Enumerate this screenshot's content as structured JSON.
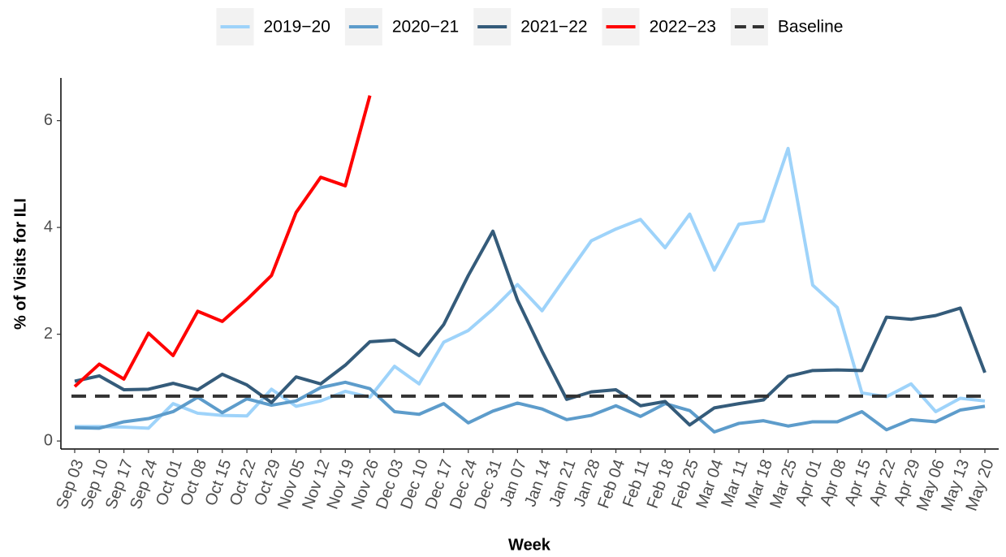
{
  "chart_data": {
    "type": "line",
    "xlabel": "Week",
    "ylabel": "% of Visits for ILI",
    "categories": [
      "Sep 03",
      "Sep 10",
      "Sep 17",
      "Sep 24",
      "Oct 01",
      "Oct 08",
      "Oct 15",
      "Oct 22",
      "Oct 29",
      "Nov 05",
      "Nov 12",
      "Nov 19",
      "Nov 26",
      "Dec 03",
      "Dec 10",
      "Dec 17",
      "Dec 24",
      "Dec 31",
      "Jan 07",
      "Jan 14",
      "Jan 21",
      "Jan 28",
      "Feb 04",
      "Feb 11",
      "Feb 18",
      "Feb 25",
      "Mar 04",
      "Mar 11",
      "Mar 18",
      "Mar 25",
      "Apr 01",
      "Apr 08",
      "Apr 15",
      "Apr 22",
      "Apr 29",
      "May 06",
      "May 13",
      "May 20"
    ],
    "series": [
      {
        "name": "2019−20",
        "color": "#9ed3fa",
        "values": [
          0.27,
          0.27,
          0.26,
          0.24,
          0.7,
          0.52,
          0.48,
          0.47,
          0.97,
          0.65,
          0.75,
          0.93,
          0.82,
          1.4,
          1.07,
          1.85,
          2.07,
          2.47,
          2.93,
          2.44,
          3.1,
          3.75,
          3.97,
          4.15,
          3.62,
          4.25,
          3.2,
          4.06,
          4.12,
          5.48,
          2.92,
          2.5,
          0.9,
          0.83,
          1.07,
          0.55,
          0.8,
          0.75
        ]
      },
      {
        "name": "2020−21",
        "color": "#5d9ccb",
        "values": [
          0.25,
          0.24,
          0.36,
          0.42,
          0.55,
          0.82,
          0.53,
          0.79,
          0.67,
          0.75,
          1.0,
          1.1,
          0.98,
          0.55,
          0.5,
          0.7,
          0.34,
          0.56,
          0.71,
          0.6,
          0.4,
          0.48,
          0.66,
          0.46,
          0.7,
          0.57,
          0.17,
          0.33,
          0.38,
          0.28,
          0.36,
          0.36,
          0.55,
          0.21,
          0.4,
          0.36,
          0.58,
          0.65
        ]
      },
      {
        "name": "2021−22",
        "color": "#345b7a",
        "values": [
          1.12,
          1.22,
          0.96,
          0.97,
          1.08,
          0.96,
          1.25,
          1.05,
          0.72,
          1.2,
          1.07,
          1.42,
          1.86,
          1.89,
          1.6,
          2.18,
          3.1,
          3.93,
          2.64,
          1.68,
          0.78,
          0.92,
          0.96,
          0.66,
          0.74,
          0.3,
          0.62,
          0.7,
          0.77,
          1.21,
          1.32,
          1.33,
          1.32,
          2.32,
          2.28,
          2.35,
          2.49,
          1.28
        ]
      },
      {
        "name": "2022−23",
        "color": "#ff0000",
        "values": [
          1.02,
          1.44,
          1.16,
          2.02,
          1.6,
          2.43,
          2.24,
          2.65,
          3.1,
          4.28,
          4.94,
          4.78,
          6.47,
          null,
          null,
          null,
          null,
          null,
          null,
          null,
          null,
          null,
          null,
          null,
          null,
          null,
          null,
          null,
          null,
          null,
          null,
          null,
          null,
          null,
          null,
          null,
          null,
          null
        ]
      }
    ],
    "baseline": {
      "name": "Baseline",
      "color": "#333333",
      "value": 0.84
    },
    "ylim": [
      -0.15,
      6.8
    ],
    "yticks": [
      0,
      2,
      4,
      6
    ],
    "legend": "top",
    "grid": false
  }
}
